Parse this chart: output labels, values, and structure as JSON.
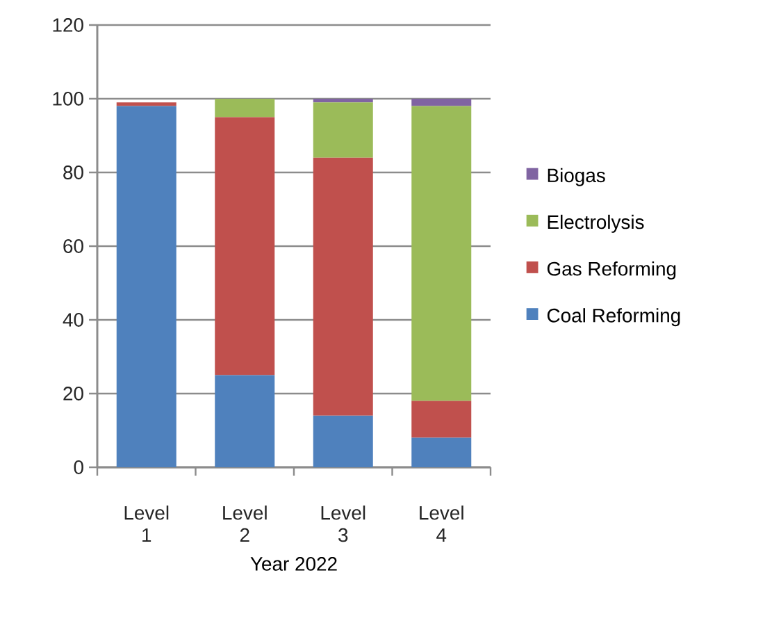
{
  "chart_data": {
    "type": "bar",
    "stacked": true,
    "xlabel": "Year  2022",
    "categories": [
      "Level 1",
      "Level 2",
      "Level 3",
      "Level 4"
    ],
    "series": [
      {
        "name": "Coal Reforming",
        "color": "#4f81bd",
        "values": [
          98,
          25,
          14,
          8
        ]
      },
      {
        "name": "Gas Reforming",
        "color": "#c0504d",
        "values": [
          1,
          70,
          70,
          10
        ]
      },
      {
        "name": "Electrolysis",
        "color": "#9bbb59",
        "values": [
          null,
          5,
          15,
          80
        ]
      },
      {
        "name": "Biogas",
        "color": "#8064a2",
        "values": [
          null,
          null,
          1,
          2
        ]
      }
    ],
    "ylim": [
      0,
      120
    ],
    "yticks": [
      0,
      20,
      40,
      60,
      80,
      100,
      120
    ],
    "grid": "y",
    "legend": "right"
  }
}
